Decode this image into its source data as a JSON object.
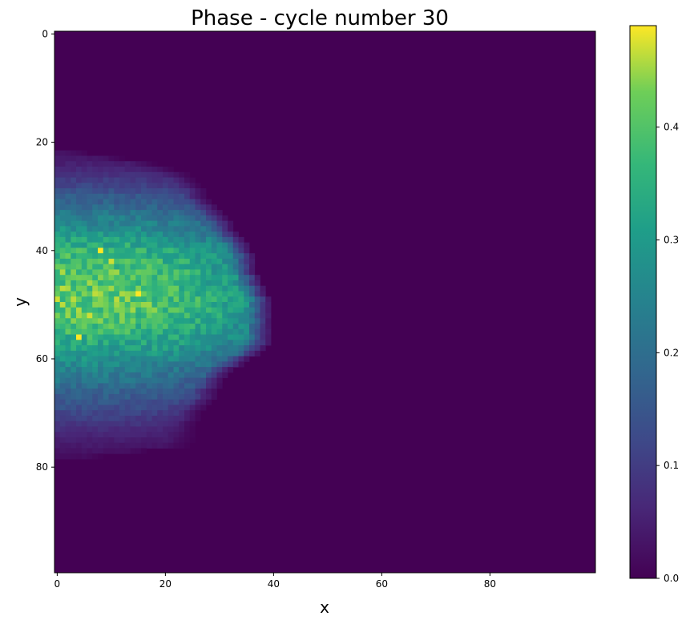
{
  "chart_data": {
    "type": "heatmap",
    "title": "Phase - cycle number 30",
    "xlabel": "x",
    "ylabel": "y",
    "grid": false,
    "colormap": "viridis",
    "x_ticks": [
      0,
      20,
      40,
      60,
      80
    ],
    "y_ticks": [
      0,
      20,
      40,
      60,
      80
    ],
    "colorbar_ticks": [
      0.0,
      0.1,
      0.2,
      0.3,
      0.4
    ],
    "colorbar_range": [
      0,
      0.49
    ],
    "xlim": [
      -0.5,
      99.5
    ],
    "ylim": [
      99.5,
      -0.5
    ],
    "grid_size": [
      100,
      100
    ],
    "background_value": 0.0,
    "blob": {
      "rows": [
        22,
        78
      ],
      "description_free_values": true,
      "row_profile": [
        [
          22,
          0,
          6,
          0.03
        ],
        [
          24,
          0,
          18,
          0.05
        ],
        [
          26,
          0,
          24,
          0.08
        ],
        [
          28,
          0,
          26,
          0.12
        ],
        [
          30,
          0,
          27,
          0.16
        ],
        [
          32,
          0,
          29,
          0.2
        ],
        [
          34,
          0,
          31,
          0.24
        ],
        [
          36,
          0,
          32,
          0.28
        ],
        [
          38,
          0,
          34,
          0.32
        ],
        [
          40,
          0,
          35,
          0.36
        ],
        [
          42,
          0,
          36,
          0.38
        ],
        [
          44,
          0,
          36,
          0.4
        ],
        [
          46,
          0,
          37,
          0.4
        ],
        [
          48,
          0,
          38,
          0.41
        ],
        [
          50,
          0,
          39,
          0.41
        ],
        [
          52,
          0,
          39,
          0.4
        ],
        [
          54,
          0,
          39,
          0.38
        ],
        [
          56,
          0,
          39,
          0.35
        ],
        [
          58,
          0,
          38,
          0.32
        ],
        [
          60,
          0,
          35,
          0.28
        ],
        [
          62,
          0,
          32,
          0.25
        ],
        [
          64,
          0,
          30,
          0.22
        ],
        [
          66,
          0,
          29,
          0.18
        ],
        [
          68,
          0,
          28,
          0.15
        ],
        [
          70,
          0,
          26,
          0.12
        ],
        [
          72,
          0,
          25,
          0.09
        ],
        [
          74,
          0,
          25,
          0.06
        ],
        [
          76,
          0,
          24,
          0.04
        ],
        [
          78,
          0,
          9,
          0.02
        ]
      ],
      "hotspots": [
        [
          8,
          40,
          0.49
        ],
        [
          10,
          42,
          0.47
        ],
        [
          15,
          48,
          0.49
        ],
        [
          6,
          52,
          0.47
        ],
        [
          4,
          56,
          0.49
        ],
        [
          11,
          44,
          0.45
        ]
      ]
    }
  }
}
